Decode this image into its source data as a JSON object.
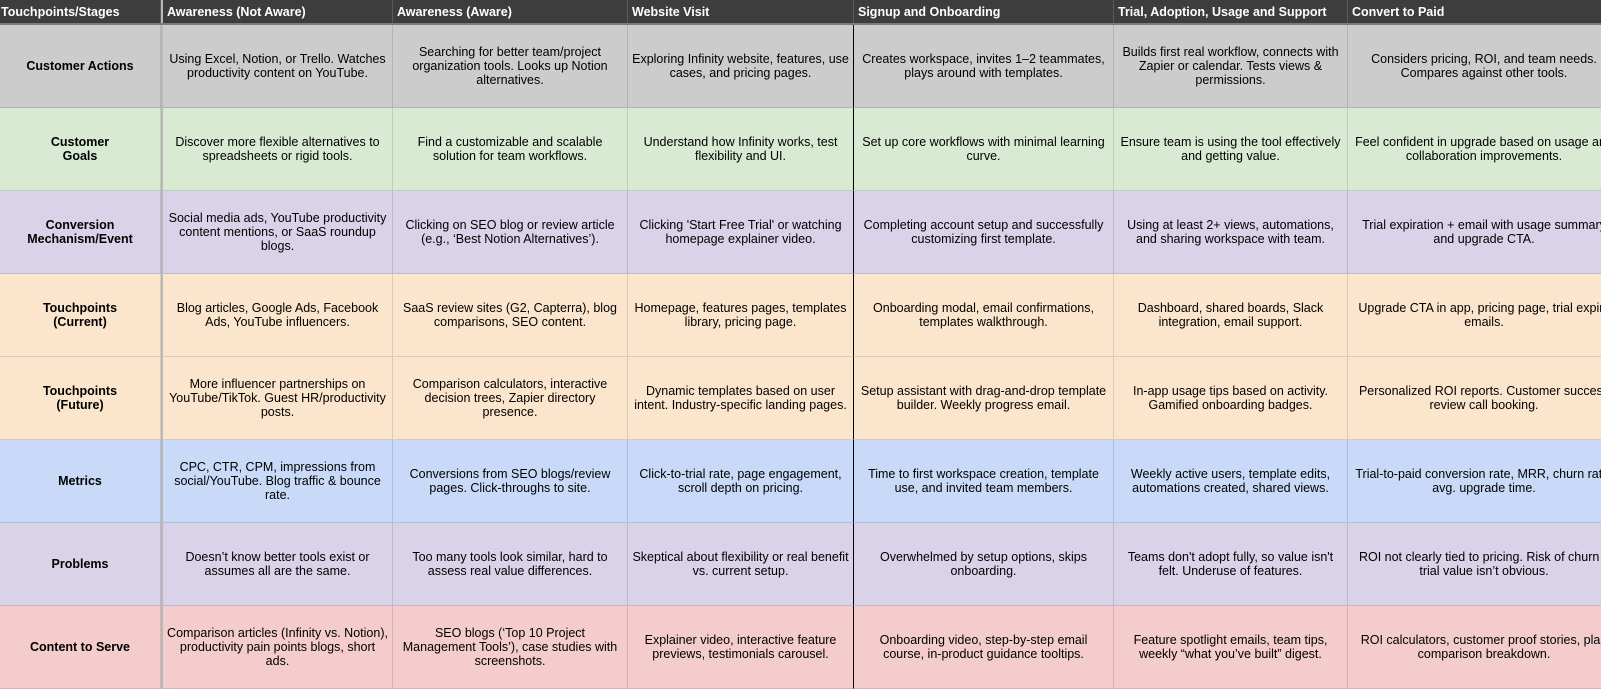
{
  "header": {
    "stages_label": "Touchpoints/Stages",
    "columns": [
      "Awareness (Not Aware)",
      "Awareness (Aware)",
      "Website Visit",
      "Signup and Onboarding",
      "Trial, Adoption, Usage and Support",
      "Convert to Paid"
    ]
  },
  "rows": [
    {
      "label": "Customer Actions",
      "color": "#cccccc",
      "cells": [
        "Using Excel, Notion, or Trello. Watches productivity content on YouTube.",
        "Searching for better team/project organization tools. Looks up Notion alternatives.",
        "Exploring Infinity website, features, use cases, and pricing pages.",
        "Creates workspace, invites 1–2 teammates, plays around with templates.",
        "Builds first real workflow, connects with Zapier or calendar. Tests views & permissions.",
        "Considers pricing, ROI, and team needs. Compares against other tools."
      ]
    },
    {
      "label": "Customer Goals",
      "color": "#d9ead3",
      "cells": [
        "Discover more flexible alternatives to spreadsheets or rigid tools.",
        "Find a customizable and scalable solution for team workflows.",
        "Understand how Infinity works, test flexibility and UI.",
        "Set up core workflows with minimal learning curve.",
        "Ensure team is using the tool effectively and getting value.",
        "Feel confident in upgrade based on usage and collaboration improvements."
      ]
    },
    {
      "label": "Conversion Mechanism/Event",
      "color": "#d9d2e9",
      "cells": [
        "Social media ads, YouTube productivity content mentions, or SaaS roundup blogs.",
        "Clicking on SEO blog or review article (e.g., ‘Best Notion Alternatives’).",
        "Clicking 'Start Free Trial' or watching homepage explainer video.",
        "Completing account setup and successfully customizing first template.",
        "Using at least 2+ views, automations, and sharing workspace with team.",
        "Trial expiration + email with usage summary and upgrade CTA."
      ]
    },
    {
      "label": "Touchpoints (Current)",
      "color": "#fce5cd",
      "cells": [
        "Blog articles, Google Ads, Facebook Ads, YouTube influencers.",
        "SaaS review sites (G2, Capterra), blog comparisons, SEO content.",
        "Homepage, features pages, templates library, pricing page.",
        "Onboarding modal, email confirmations, templates walkthrough.",
        "Dashboard, shared boards, Slack integration, email support.",
        "Upgrade CTA in app, pricing page, trial expiry emails."
      ]
    },
    {
      "label": "Touchpoints (Future)",
      "color": "#fce5cd",
      "cells": [
        "More influencer partnerships on YouTube/TikTok. Guest HR/productivity posts.",
        "Comparison calculators, interactive decision trees, Zapier directory presence.",
        "Dynamic templates based on user intent. Industry-specific landing pages.",
        "Setup assistant with drag-and-drop template builder. Weekly progress email.",
        "In-app usage tips based on activity. Gamified onboarding badges.",
        "Personalized ROI reports. Customer success review call booking."
      ]
    },
    {
      "label": "Metrics",
      "color": "#c9daf8",
      "cells": [
        "CPC, CTR, CPM, impressions from social/YouTube. Blog traffic & bounce rate.",
        "Conversions from SEO blogs/review pages. Click-throughs to site.",
        "Click-to-trial rate, page engagement, scroll depth on pricing.",
        "Time to first workspace creation, template use, and invited team members.",
        "Weekly active users, template edits, automations created, shared views.",
        "Trial-to-paid conversion rate, MRR, churn rate, avg. upgrade time."
      ]
    },
    {
      "label": "Problems",
      "color": "#d9d2e9",
      "cells": [
        "Doesn’t know better tools exist or assumes all are the same.",
        "Too many tools look similar, hard to assess real value differences.",
        "Skeptical about flexibility or real benefit vs. current setup.",
        "Overwhelmed by setup options, skips onboarding.",
        "Teams don't adopt fully, so value isn't felt. Underuse of features.",
        "ROI not clearly tied to pricing. Risk of churn if trial value isn’t obvious."
      ]
    },
    {
      "label": "Content to Serve",
      "color": "#f4cccc",
      "cells": [
        "Comparison articles (Infinity vs. Notion), productivity pain points blogs, short ads.",
        "SEO blogs (‘Top 10 Project Management Tools’), case studies with screenshots.",
        "Explainer video, interactive feature previews, testimonials carousel.",
        "Onboarding video, step-by-step email course, in-product guidance tooltips.",
        "Feature spotlight emails, team tips, weekly “what you’ve built” digest.",
        "ROI calculators, customer proof stories, plan comparison breakdown."
      ]
    }
  ]
}
